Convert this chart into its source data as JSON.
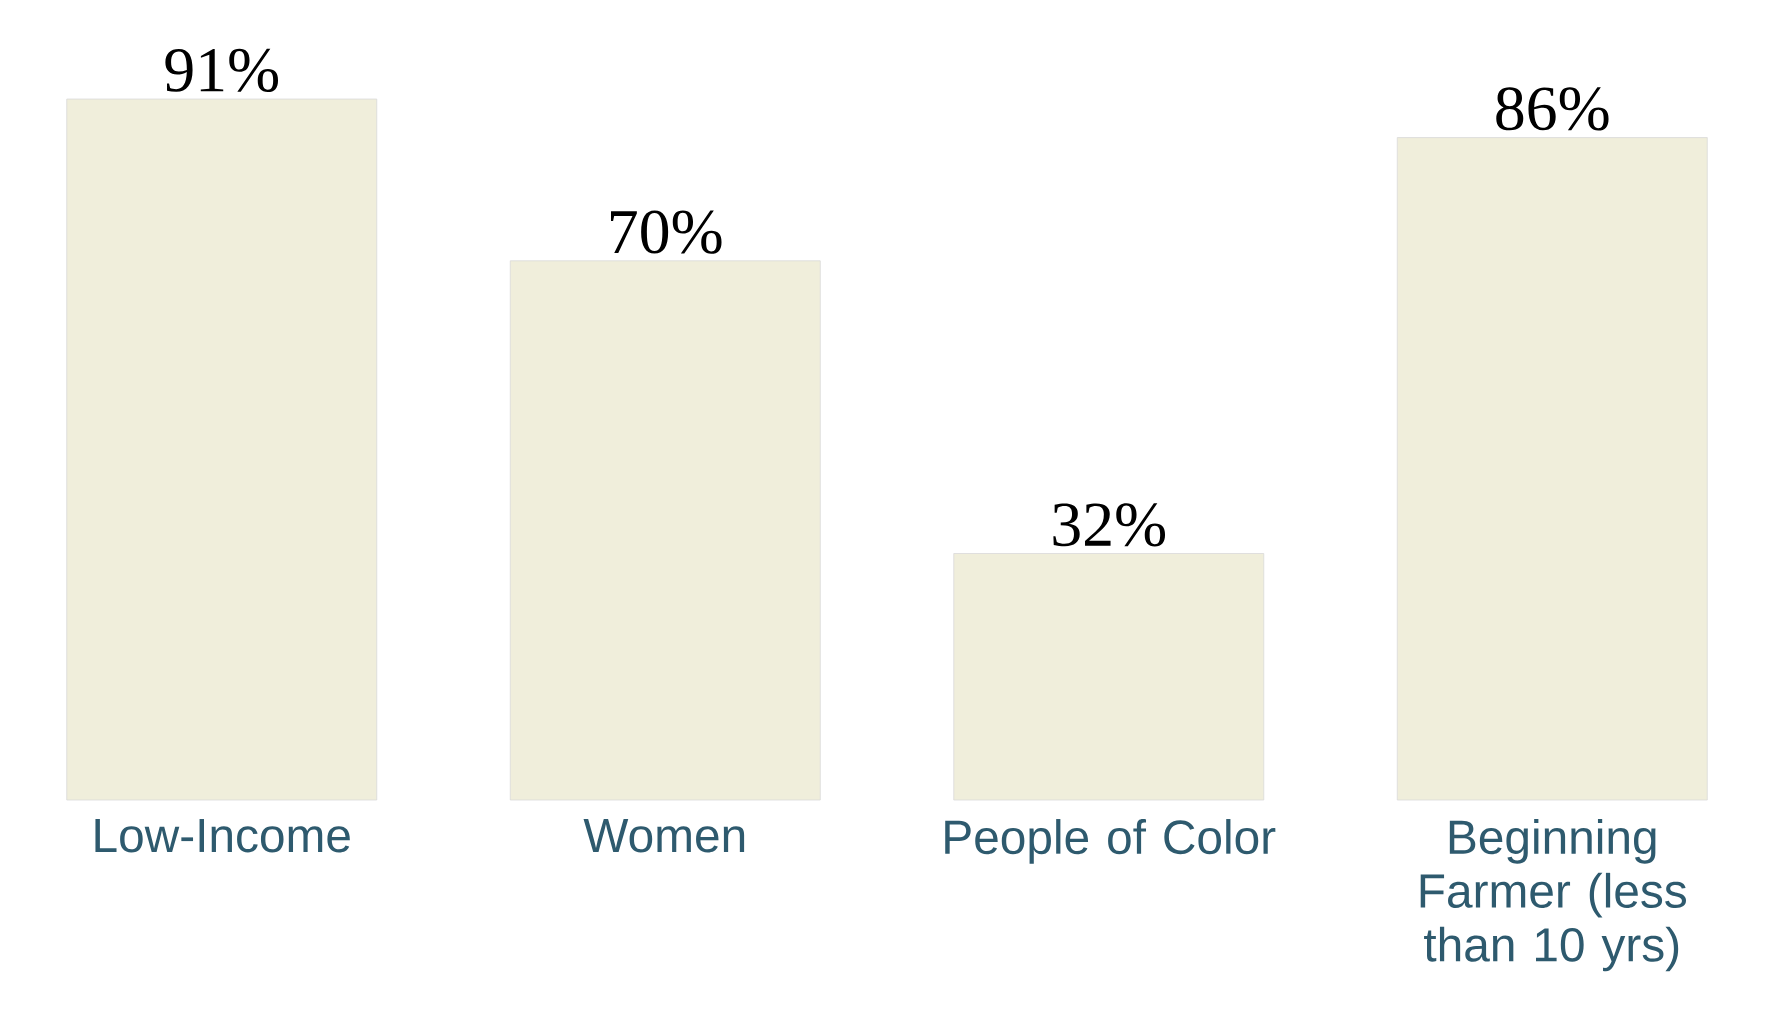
{
  "chart_data": {
    "type": "bar",
    "categories": [
      "Low-Income",
      "Women",
      "People of Color",
      "Beginning Farmer (less than 10 yrs)"
    ],
    "values": [
      91,
      70,
      32,
      86
    ],
    "value_labels": [
      "91%",
      "70%",
      "32%",
      "86%"
    ],
    "color": "#f0eedb"
  }
}
